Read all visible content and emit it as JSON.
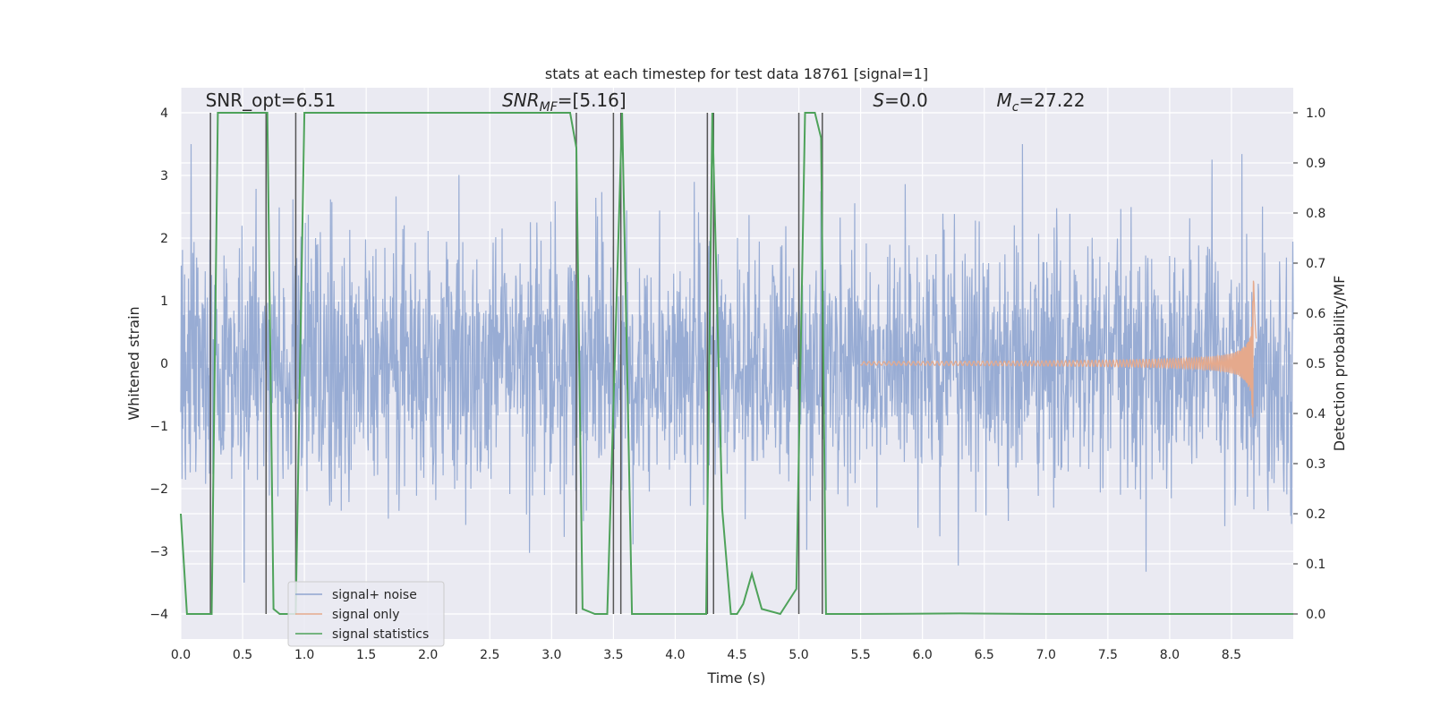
{
  "chart_data": {
    "type": "line",
    "title": "stats at each timestep for test data 18761 [signal=1]",
    "xlabel": "Time (s)",
    "ylabel": "Whitened strain",
    "ylabel_right": "Detection probability/MF",
    "xlim": [
      0,
      9
    ],
    "ylim": [
      -4.4,
      4.4
    ],
    "ylim_right": [
      -0.05,
      1.05
    ],
    "x_ticks": [
      0,
      0.5,
      1,
      1.5,
      2,
      2.5,
      3,
      3.5,
      4,
      4.5,
      5,
      5.5,
      6,
      6.5,
      7,
      7.5,
      8,
      8.5
    ],
    "x_tick_labels": [
      "0.0",
      "0.5",
      "1.0",
      "1.5",
      "2.0",
      "2.5",
      "3.0",
      "3.5",
      "4.0",
      "4.5",
      "5.0",
      "5.5",
      "6.0",
      "6.5",
      "7.0",
      "7.5",
      "8.0",
      "8.5"
    ],
    "y_ticks": [
      4,
      3,
      2,
      1,
      0,
      -1,
      -2,
      -3,
      -4
    ],
    "y_tick_labels": [
      "4",
      "3",
      "2",
      "1",
      "0",
      "−1",
      "−2",
      "−3",
      "−4"
    ],
    "y_ticks_right": [
      1.0,
      0.9,
      0.8,
      0.7,
      0.6,
      0.5,
      0.4,
      0.3,
      0.2,
      0.1,
      0.0
    ],
    "y_tick_labels_right": [
      "1.0",
      "0.9",
      "0.8",
      "0.7",
      "0.6",
      "0.5",
      "0.4",
      "0.3",
      "0.2",
      "0.1",
      "0.0"
    ],
    "grid": true,
    "legend_position": "lower-left",
    "annotations": [
      {
        "label": "SNR_opt=6.51",
        "x": 0.2,
        "y": 4.1
      },
      {
        "label": "SNR",
        "sub": "MF",
        "suffix": "=[5.16]",
        "italic": true,
        "x": 2.6,
        "y": 4.1
      },
      {
        "label": "S",
        "suffix": "=0.0",
        "italic": true,
        "x": 5.6,
        "y": 4.1
      },
      {
        "label": "M",
        "sub": "c",
        "suffix": "=27.22",
        "italic": true,
        "x": 6.6,
        "y": 4.1
      }
    ],
    "series": [
      {
        "name": "signal+ noise",
        "color": "#8fa5d0",
        "axis": "left",
        "kind": "noise",
        "x_range": [
          0,
          9
        ],
        "typical_amplitude": 1.6,
        "peak_amplitude": 3.5
      },
      {
        "name": "signal only",
        "color": "#e5a98c",
        "axis": "left",
        "kind": "chirp",
        "x_range": [
          5.5,
          8.7
        ],
        "peak_time": 8.68,
        "peak_amplitude": 1.6
      },
      {
        "name": "signal statistics",
        "color": "#4ea25a",
        "axis": "right",
        "x": [
          0,
          0.05,
          0.25,
          0.3,
          0.7,
          0.75,
          0.8,
          0.93,
          1.0,
          3.15,
          3.2,
          3.25,
          3.35,
          3.45,
          3.57,
          3.65,
          4.0,
          4.25,
          4.3,
          4.38,
          4.45,
          4.5,
          4.55,
          4.62,
          4.7,
          4.85,
          4.98,
          5.05,
          5.13,
          5.18,
          5.22,
          5.5,
          6.3,
          7.0,
          8.0,
          9.0
        ],
        "y": [
          0.2,
          0.0,
          0.0,
          1.0,
          1.0,
          0.01,
          0.0,
          0.0,
          1.0,
          1.0,
          0.93,
          0.01,
          0.0,
          0.0,
          1.0,
          0.0,
          0.0,
          0.0,
          1.0,
          0.21,
          0.0,
          0.0,
          0.02,
          0.08,
          0.01,
          0.0,
          0.05,
          1.0,
          1.0,
          0.95,
          0.0,
          0.0,
          0.001,
          0.0,
          0.0,
          0.0
        ]
      }
    ],
    "vlines": [
      0.24,
      0.69,
      0.93,
      3.2,
      3.5,
      3.56,
      4.26,
      4.31,
      5.0,
      5.19
    ],
    "vline_color": "#555555"
  }
}
